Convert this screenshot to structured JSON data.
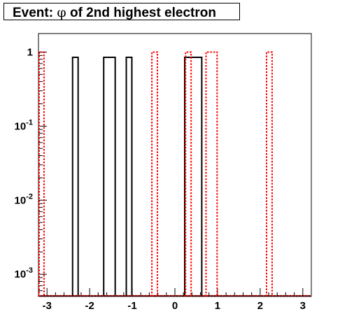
{
  "title": {
    "prefix": "Event: ",
    "symbol": "φ",
    "rest": " of 2nd highest electron"
  },
  "chart_data": {
    "type": "histogram",
    "title": "Event: φ of 2nd highest electron",
    "xlim": [
      -3.2,
      3.2
    ],
    "ylim_log10": [
      -3.3,
      0.25
    ],
    "y_scale": "log",
    "grid": false,
    "x_ticks": [
      -3,
      -2,
      -1,
      0,
      1,
      2,
      3
    ],
    "x_tick_labels": [
      "-3",
      "-2",
      "-1",
      "0",
      "1",
      "2",
      "3"
    ],
    "y_ticks": [
      {
        "value": 1,
        "base": "1",
        "exp": ""
      },
      {
        "value": 0.1,
        "base": "10",
        "exp": "-1"
      },
      {
        "value": 0.01,
        "base": "10",
        "exp": "-2"
      },
      {
        "value": 0.001,
        "base": "10",
        "exp": "-3"
      }
    ],
    "series": [
      {
        "color": "#000000",
        "style": "solid",
        "bins": [
          {
            "x0": -2.4,
            "x1": -2.27,
            "y": 0.85
          },
          {
            "x0": -1.67,
            "x1": -1.4,
            "y": 0.85
          },
          {
            "x0": -1.14,
            "x1": -1.01,
            "y": 0.85
          },
          {
            "x0": 0.23,
            "x1": 0.63,
            "y": 0.85
          }
        ]
      },
      {
        "color": "#ff0000",
        "style": "dotted",
        "bins": [
          {
            "x0": -3.2,
            "x1": -3.07,
            "y": 1
          },
          {
            "x0": -0.54,
            "x1": -0.41,
            "y": 1
          },
          {
            "x0": 0.25,
            "x1": 0.38,
            "y": 1
          },
          {
            "x0": 0.73,
            "x1": 0.99,
            "y": 1
          },
          {
            "x0": 2.15,
            "x1": 2.28,
            "y": 1
          }
        ]
      }
    ]
  }
}
